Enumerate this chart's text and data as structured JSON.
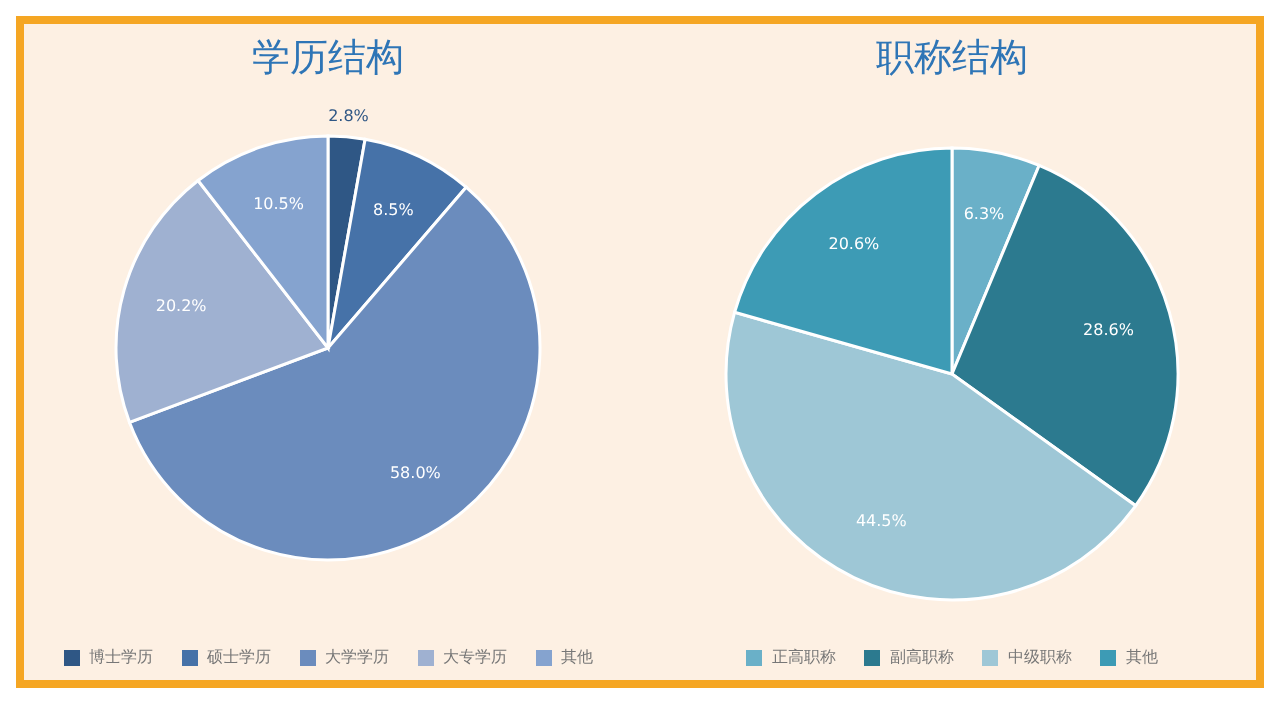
{
  "chart_data": [
    {
      "type": "pie",
      "title": "学历结构",
      "categories": [
        "博士学历",
        "硕士学历",
        "大学学历",
        "大专学历",
        "其他"
      ],
      "values": [
        2.8,
        8.5,
        58.0,
        20.2,
        10.5
      ],
      "value_labels": [
        "2.8%",
        "8.5%",
        "58.0%",
        "20.2%",
        "10.5%"
      ],
      "colors": [
        "#2f5785",
        "#4672a8",
        "#6b8cbd",
        "#9fb1d1",
        "#85a3cf"
      ],
      "legend": "bottom"
    },
    {
      "type": "pie",
      "title": "职称结构",
      "categories": [
        "正高职称",
        "副高职称",
        "中级职称",
        "其他"
      ],
      "values": [
        6.3,
        28.6,
        44.5,
        20.6
      ],
      "value_labels": [
        "6.3%",
        "28.6%",
        "44.5%",
        "20.6%"
      ],
      "colors": [
        "#6ab0c8",
        "#2c7a8f",
        "#9ec7d6",
        "#3d9bb5"
      ],
      "legend": "bottom"
    }
  ]
}
